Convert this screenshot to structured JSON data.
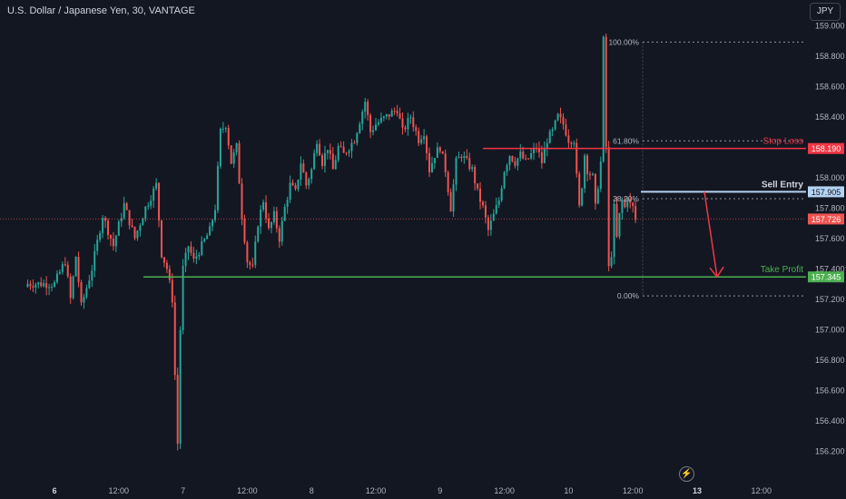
{
  "header": {
    "title": "U.S. Dollar / Japanese Yen, 30, VANTAGE",
    "currency_button": "JPY"
  },
  "colors": {
    "background": "#131722",
    "bull": "#26a69a",
    "bear": "#ef5350",
    "stop": "#f23645",
    "target": "#4caf50",
    "entry": "#b4d3f2",
    "text": "#b2b5be"
  },
  "chart_data": {
    "type": "candlestick",
    "title": "U.S. Dollar / Japanese Yen, 30, VANTAGE",
    "ylim": [
      156.1,
      159.1
    ],
    "yticks": [
      156.2,
      156.4,
      156.6,
      156.8,
      157.0,
      157.2,
      157.4,
      157.6,
      157.8,
      158.0,
      158.2,
      158.4,
      158.6,
      158.8,
      159.0
    ],
    "ytick_labels": [
      "156.200",
      "156.400",
      "156.600",
      "156.800",
      "157.000",
      "157.200",
      "157.400",
      "157.600",
      "157.800",
      "158.000",
      "158.200",
      "158.400",
      "158.600",
      "158.800",
      "159.000"
    ],
    "x_ticks": [
      {
        "label": "6",
        "bar": 0,
        "bold": true
      },
      {
        "label": "12:00",
        "bar": 24
      },
      {
        "label": "7",
        "bar": 48
      },
      {
        "label": "12:00",
        "bar": 72
      },
      {
        "label": "8",
        "bar": 96
      },
      {
        "label": "12:00",
        "bar": 120
      },
      {
        "label": "9",
        "bar": 144
      },
      {
        "label": "12:00",
        "bar": 168
      },
      {
        "label": "10",
        "bar": 192
      },
      {
        "label": "12:00",
        "bar": 216
      },
      {
        "label": "13",
        "bar": 240,
        "bold": true
      },
      {
        "label": "12:00",
        "bar": 264
      }
    ],
    "bars_before_first_tick": 10,
    "close_path": [
      [
        0,
        157.3
      ],
      [
        4,
        157.45
      ],
      [
        6,
        157.2
      ],
      [
        8,
        157.48
      ],
      [
        10,
        157.15
      ],
      [
        14,
        157.4
      ],
      [
        18,
        157.75
      ],
      [
        22,
        157.55
      ],
      [
        26,
        157.82
      ],
      [
        30,
        157.6
      ],
      [
        34,
        157.8
      ],
      [
        38,
        157.95
      ],
      [
        40,
        157.5
      ],
      [
        42,
        157.4
      ],
      [
        44,
        157.2
      ],
      [
        45,
        156.7
      ],
      [
        46,
        156.25
      ],
      [
        47,
        157.0
      ],
      [
        48,
        157.4
      ],
      [
        50,
        157.55
      ],
      [
        52,
        157.45
      ],
      [
        55,
        157.55
      ],
      [
        58,
        157.65
      ],
      [
        60,
        157.8
      ],
      [
        62,
        158.3
      ],
      [
        64,
        158.35
      ],
      [
        66,
        158.1
      ],
      [
        68,
        158.2
      ],
      [
        70,
        157.75
      ],
      [
        72,
        157.45
      ],
      [
        74,
        157.4
      ],
      [
        76,
        157.7
      ],
      [
        78,
        157.85
      ],
      [
        80,
        157.65
      ],
      [
        82,
        157.75
      ],
      [
        84,
        157.6
      ],
      [
        86,
        157.8
      ],
      [
        88,
        157.95
      ],
      [
        90,
        157.9
      ],
      [
        92,
        158.1
      ],
      [
        94,
        157.95
      ],
      [
        96,
        158.05
      ],
      [
        98,
        158.25
      ],
      [
        100,
        158.1
      ],
      [
        102,
        158.2
      ],
      [
        104,
        158.05
      ],
      [
        106,
        158.2
      ],
      [
        108,
        158.15
      ],
      [
        112,
        158.25
      ],
      [
        116,
        158.5
      ],
      [
        118,
        158.3
      ],
      [
        120,
        158.35
      ],
      [
        124,
        158.4
      ],
      [
        128,
        158.45
      ],
      [
        130,
        158.3
      ],
      [
        133,
        158.4
      ],
      [
        136,
        158.25
      ],
      [
        138,
        158.3
      ],
      [
        140,
        158.05
      ],
      [
        142,
        158.15
      ],
      [
        144,
        158.2
      ],
      [
        146,
        158.05
      ],
      [
        148,
        157.8
      ],
      [
        150,
        158.1
      ],
      [
        152,
        158.15
      ],
      [
        154,
        158.1
      ],
      [
        156,
        158.05
      ],
      [
        158,
        157.9
      ],
      [
        160,
        157.8
      ],
      [
        162,
        157.65
      ],
      [
        164,
        157.75
      ],
      [
        166,
        157.85
      ],
      [
        168,
        158.05
      ],
      [
        170,
        158.15
      ],
      [
        172,
        158.1
      ],
      [
        174,
        158.15
      ],
      [
        176,
        158.1
      ],
      [
        178,
        158.15
      ],
      [
        180,
        158.2
      ],
      [
        182,
        158.1
      ],
      [
        184,
        158.25
      ],
      [
        186,
        158.3
      ],
      [
        188,
        158.4
      ],
      [
        190,
        158.35
      ],
      [
        192,
        158.25
      ],
      [
        194,
        158.25
      ],
      [
        195,
        158.0
      ],
      [
        196,
        157.8
      ],
      [
        197,
        157.95
      ],
      [
        198,
        158.15
      ],
      [
        199,
        158.05
      ],
      [
        201,
        158.0
      ],
      [
        202,
        157.8
      ],
      [
        203,
        157.95
      ],
      [
        204,
        158.1
      ],
      [
        205,
        158.9
      ],
      [
        206,
        158.2
      ],
      [
        207,
        157.4
      ],
      [
        208,
        157.5
      ],
      [
        209,
        157.8
      ],
      [
        210,
        157.6
      ],
      [
        211,
        157.75
      ],
      [
        212,
        157.85
      ],
      [
        213,
        157.8
      ],
      [
        214,
        157.88
      ],
      [
        215,
        157.82
      ],
      [
        216,
        157.8
      ],
      [
        217,
        157.72
      ]
    ],
    "fibonacci": [
      {
        "label": "100.00%",
        "price": 158.89
      },
      {
        "label": "61.80%",
        "price": 158.24
      },
      {
        "label": "38.20%",
        "price": 157.86
      },
      {
        "label": "0.00%",
        "price": 157.22
      }
    ],
    "levels": [
      {
        "name": "Stop Loss",
        "price": 158.19,
        "price_label": "158.190",
        "kind": "stop"
      },
      {
        "name": "Sell Entry",
        "price": 157.905,
        "price_label": "157.905",
        "kind": "entry"
      },
      {
        "name": "Take Profit",
        "price": 157.345,
        "price_label": "157.345",
        "kind": "target"
      }
    ],
    "current_price": {
      "price": 157.726,
      "label": "157.726"
    }
  }
}
